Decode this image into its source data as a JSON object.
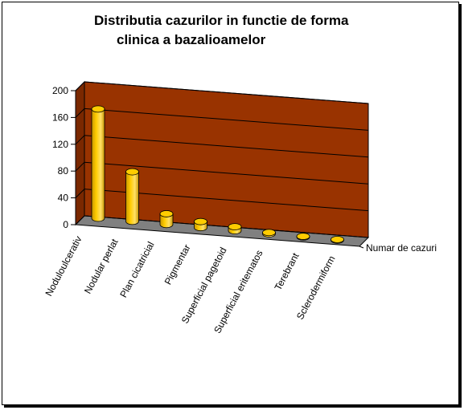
{
  "chart_data": {
    "type": "bar",
    "title_line1": "Distributia cazurilor in functie de forma",
    "title_line2": "clinica a bazalioamelor",
    "categories": [
      "Noduloulcerativ",
      "Nodular perlat",
      "Plan cicatricial",
      "Pigmentar",
      "Superficial pagetoid",
      "Superficial eritematos",
      "Terebrant",
      "Sclerodermiform"
    ],
    "series": [
      {
        "name": "Numar de cazuri",
        "values": [
          163,
          74,
          16,
          9,
          6,
          2,
          1,
          1
        ]
      }
    ],
    "ylim": [
      0,
      200
    ],
    "yticks": [
      "0",
      "40",
      "80",
      "120",
      "160",
      "200"
    ],
    "grid": true,
    "legend_position": "right",
    "colors": {
      "bar": "#ffcc00",
      "bar_dark": "#c89600",
      "wall": "#993300",
      "floor": "#808080"
    }
  }
}
